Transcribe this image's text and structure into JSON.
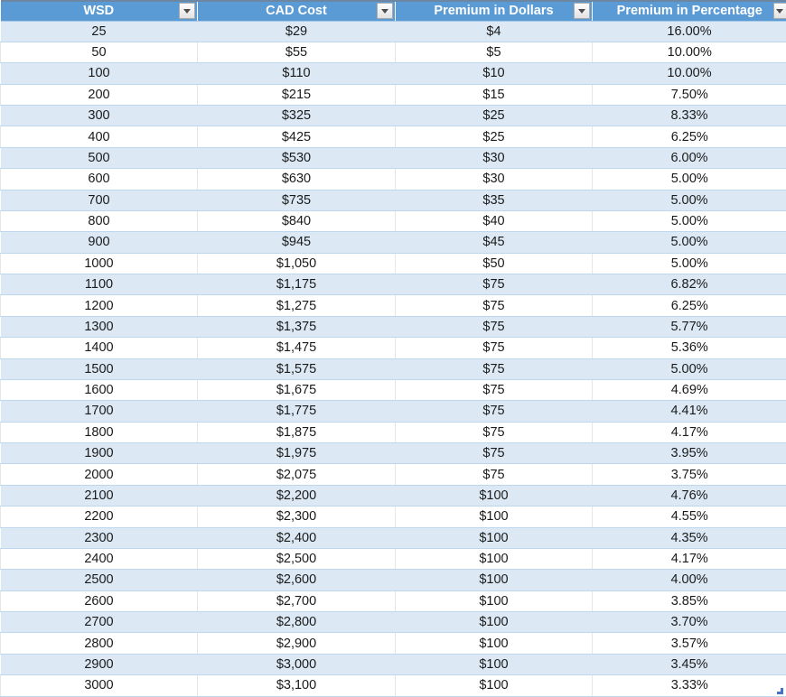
{
  "table": {
    "columns": [
      {
        "label": "WSD"
      },
      {
        "label": "CAD Cost"
      },
      {
        "label": "Premium in Dollars"
      },
      {
        "label": "Premium in Percentage"
      }
    ],
    "rows": [
      [
        "25",
        "$29",
        "$4",
        "16.00%"
      ],
      [
        "50",
        "$55",
        "$5",
        "10.00%"
      ],
      [
        "100",
        "$110",
        "$10",
        "10.00%"
      ],
      [
        "200",
        "$215",
        "$15",
        "7.50%"
      ],
      [
        "300",
        "$325",
        "$25",
        "8.33%"
      ],
      [
        "400",
        "$425",
        "$25",
        "6.25%"
      ],
      [
        "500",
        "$530",
        "$30",
        "6.00%"
      ],
      [
        "600",
        "$630",
        "$30",
        "5.00%"
      ],
      [
        "700",
        "$735",
        "$35",
        "5.00%"
      ],
      [
        "800",
        "$840",
        "$40",
        "5.00%"
      ],
      [
        "900",
        "$945",
        "$45",
        "5.00%"
      ],
      [
        "1000",
        "$1,050",
        "$50",
        "5.00%"
      ],
      [
        "1100",
        "$1,175",
        "$75",
        "6.82%"
      ],
      [
        "1200",
        "$1,275",
        "$75",
        "6.25%"
      ],
      [
        "1300",
        "$1,375",
        "$75",
        "5.77%"
      ],
      [
        "1400",
        "$1,475",
        "$75",
        "5.36%"
      ],
      [
        "1500",
        "$1,575",
        "$75",
        "5.00%"
      ],
      [
        "1600",
        "$1,675",
        "$75",
        "4.69%"
      ],
      [
        "1700",
        "$1,775",
        "$75",
        "4.41%"
      ],
      [
        "1800",
        "$1,875",
        "$75",
        "4.17%"
      ],
      [
        "1900",
        "$1,975",
        "$75",
        "3.95%"
      ],
      [
        "2000",
        "$2,075",
        "$75",
        "3.75%"
      ],
      [
        "2100",
        "$2,200",
        "$100",
        "4.76%"
      ],
      [
        "2200",
        "$2,300",
        "$100",
        "4.55%"
      ],
      [
        "2300",
        "$2,400",
        "$100",
        "4.35%"
      ],
      [
        "2400",
        "$2,500",
        "$100",
        "4.17%"
      ],
      [
        "2500",
        "$2,600",
        "$100",
        "4.00%"
      ],
      [
        "2600",
        "$2,700",
        "$100",
        "3.85%"
      ],
      [
        "2700",
        "$2,800",
        "$100",
        "3.70%"
      ],
      [
        "2800",
        "$2,900",
        "$100",
        "3.57%"
      ],
      [
        "2900",
        "$3,000",
        "$100",
        "3.45%"
      ],
      [
        "3000",
        "$3,100",
        "$100",
        "3.33%"
      ]
    ]
  },
  "icons": {
    "filter_dropdown": "down-triangle"
  },
  "colors": {
    "header_bg": "#5B9BD5",
    "header_text": "#FFFFFF",
    "band_bg": "#DCE9F5",
    "row_border": "#BDD7EE",
    "col_border": "#E6E6E6",
    "cell_text": "#1A1A1A",
    "resize_handle": "#4472C4"
  }
}
